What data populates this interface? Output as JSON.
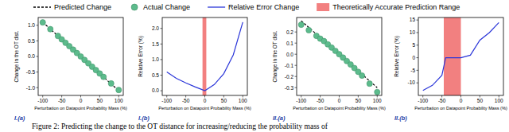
{
  "legend": [
    {
      "name": "Predicted Change",
      "color": "#000000",
      "line_style": "dashed"
    },
    {
      "name": "Actual Change",
      "color": "#5cbb8c",
      "marker": "circle"
    },
    {
      "name": "Relative Error Change",
      "color": "#2b36d9",
      "line_style": "solid"
    },
    {
      "name": "Theoretically Accurate Prediction Range",
      "color": "#f28080",
      "marker": "square"
    }
  ],
  "caption": "Figure 2: Predicting the change to the OT distance for increasing/reducing the probability mass of",
  "chart_data": [
    {
      "type": "line",
      "panel_label": "I.(a)",
      "x_label": "Perturbation on Datapoint Probability Mass (%)",
      "y_label": "Change in the OT dist.",
      "xlim": [
        -112,
        112
      ],
      "xticks": [
        -100,
        -50,
        0,
        50,
        100
      ],
      "ylim": [
        -1.25,
        1.25
      ],
      "yticks": [
        {
          "value": -1.0,
          "label": "-1.0"
        },
        -0.5,
        {
          "value": 0.0,
          "label": "0.0"
        },
        0.5,
        {
          "value": 1.0,
          "label": "1.0"
        }
      ],
      "grid": false,
      "series": [
        {
          "type": "line",
          "color": "#000000",
          "line_style": "dashed",
          "x": [
            -100,
            100
          ],
          "values": [
            1.1,
            -1.1
          ]
        },
        {
          "type": "scatter",
          "color": "#5cbb8c",
          "marker": "circle",
          "x": [
            -100,
            -80,
            -60,
            -50,
            -40,
            -30,
            -20,
            -10,
            0,
            10,
            20,
            30,
            40,
            50,
            60,
            80,
            100
          ],
          "values": [
            1.093,
            0.876,
            0.658,
            0.549,
            0.439,
            0.33,
            0.22,
            0.11,
            0.0,
            -0.11,
            -0.22,
            -0.329,
            -0.437,
            -0.547,
            -0.655,
            -0.866,
            -1.076
          ]
        }
      ]
    },
    {
      "type": "line",
      "panel_label": "I.(b)",
      "x_label": "Perturbation on Datapoint Probability Mass (%)",
      "y_label": "Relative Error (%)",
      "xlim": [
        -112,
        112
      ],
      "xticks": [
        -100,
        -50,
        0,
        50,
        100
      ],
      "ylim": [
        -0.15,
        2.35
      ],
      "yticks": [
        {
          "value": 0.0,
          "label": "0.0"
        },
        0.5,
        {
          "value": 1.0,
          "label": "1.0"
        },
        1.5,
        {
          "value": 2.0,
          "label": "2.0"
        }
      ],
      "grid": false,
      "shaded_range": {
        "range": [
          -6,
          4
        ],
        "color": "#f28080"
      },
      "series": [
        {
          "type": "line",
          "color": "#2b36d9",
          "line_style": "solid",
          "x": [
            -100,
            -75,
            -50,
            -25,
            -10,
            0,
            10,
            25,
            50,
            75,
            100
          ],
          "values": [
            0.6,
            0.4,
            0.25,
            0.12,
            0.05,
            0.0,
            0.08,
            0.2,
            0.55,
            1.15,
            2.2
          ]
        }
      ]
    },
    {
      "type": "line",
      "panel_label": "II.(a)",
      "x_label": "Perturbation on Datapoint Probability Mass (%)",
      "y_label": "Change in the OT dist.",
      "xlim": [
        -112,
        112
      ],
      "xticks": [
        -100,
        -50,
        0,
        50,
        100
      ],
      "ylim": [
        -0.37,
        0.33
      ],
      "yticks": [
        -0.3,
        -0.2,
        -0.1,
        {
          "value": 0.0,
          "label": "0.0"
        },
        0.1,
        0.2
      ],
      "grid": false,
      "series": [
        {
          "type": "line",
          "color": "#000000",
          "line_style": "dashed",
          "x": [
            -100,
            100
          ],
          "values": [
            0.3,
            -0.3
          ]
        },
        {
          "type": "scatter",
          "color": "#5cbb8c",
          "marker": "circle",
          "x": [
            -100,
            -80,
            -60,
            -50,
            -40,
            -30,
            -20,
            -10,
            0,
            10,
            20,
            30,
            40,
            50,
            60,
            80,
            100
          ],
          "values": [
            0.265,
            0.216,
            0.165,
            0.14,
            0.118,
            0.089,
            0.06,
            0.03,
            0.0,
            -0.03,
            -0.061,
            -0.092,
            -0.124,
            -0.158,
            -0.192,
            -0.264,
            -0.34
          ]
        }
      ]
    },
    {
      "type": "line",
      "panel_label": "II.(b)",
      "x_label": "Perturbation on Datapoint Probability Mass (%)",
      "y_label": "Relative Error (%)",
      "xlim": [
        -112,
        112
      ],
      "xticks": [
        -100,
        -50,
        0,
        50,
        100
      ],
      "ylim": [
        -15,
        16
      ],
      "yticks": [
        -10,
        -5,
        0,
        5,
        10,
        15
      ],
      "grid": false,
      "shaded_range": {
        "range": [
          -45,
          0
        ],
        "color": "#f28080"
      },
      "series": [
        {
          "type": "line",
          "color": "#2b36d9",
          "line_style": "solid",
          "x": [
            -100,
            -75,
            -50,
            -40,
            -25,
            0,
            25,
            50,
            75,
            100
          ],
          "values": [
            -13,
            -11,
            -7,
            0,
            0,
            0,
            1,
            7,
            10,
            14
          ]
        }
      ]
    }
  ]
}
